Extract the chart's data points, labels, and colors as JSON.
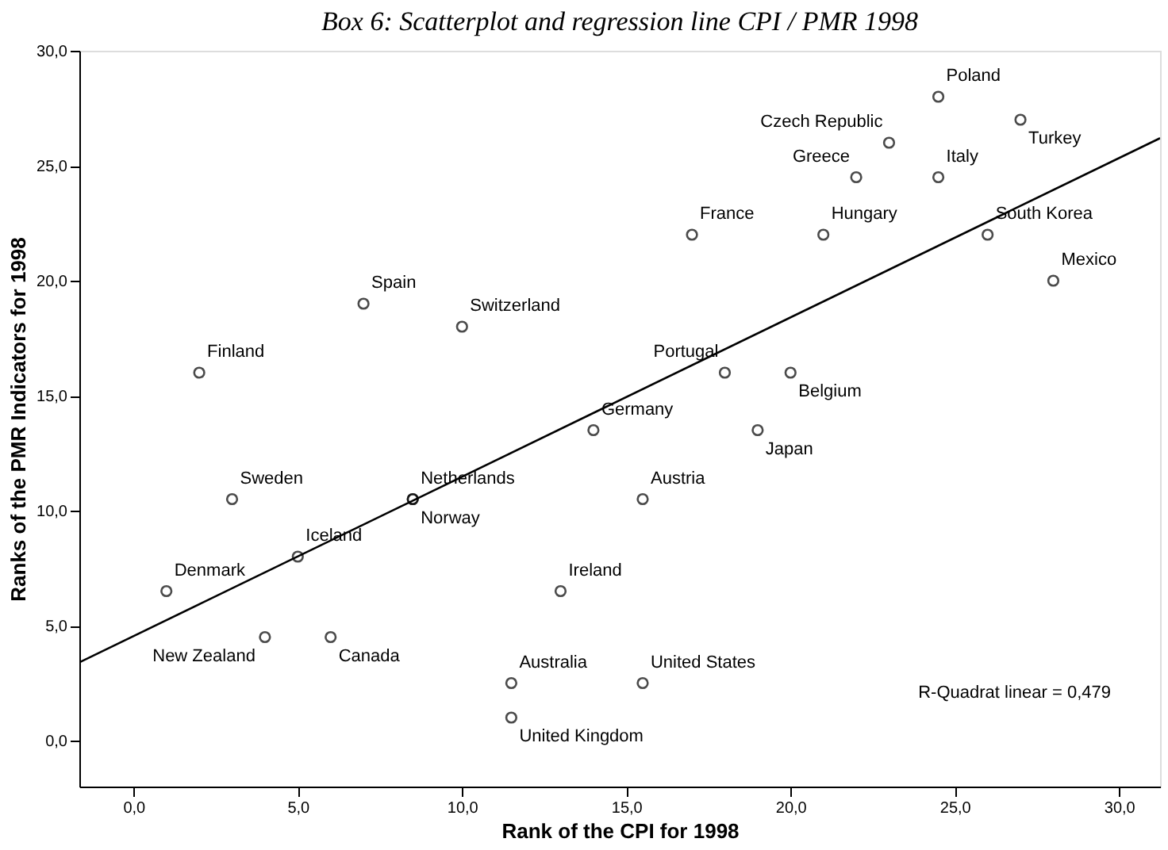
{
  "chart_data": {
    "type": "scatter",
    "title": "Box 6: Scatterplot and regression line CPI / PMR 1998",
    "xlabel": "Rank of the CPI for 1998",
    "ylabel": "Ranks of the PMR Indicators for 1998",
    "xlim": [
      -1.65,
      31.25
    ],
    "ylim": [
      -2,
      30
    ],
    "xticks": [
      {
        "value": 0,
        "label": "0,0"
      },
      {
        "value": 5,
        "label": "5,0"
      },
      {
        "value": 10,
        "label": "10,0"
      },
      {
        "value": 15,
        "label": "15,0"
      },
      {
        "value": 20,
        "label": "20,0"
      },
      {
        "value": 25,
        "label": "25,0"
      },
      {
        "value": 30,
        "label": "30,0"
      }
    ],
    "yticks": [
      {
        "value": 0,
        "label": "0,0"
      },
      {
        "value": 5,
        "label": "5,0"
      },
      {
        "value": 10,
        "label": "10,0"
      },
      {
        "value": 15,
        "label": "15,0"
      },
      {
        "value": 20,
        "label": "20,0"
      },
      {
        "value": 25,
        "label": "25,0"
      },
      {
        "value": 30,
        "label": "30,0"
      }
    ],
    "grid": false,
    "series": [
      {
        "marker": "circle",
        "color": "#000000",
        "x": [
          24.5,
          27,
          23,
          22,
          24.5,
          17,
          21,
          26,
          28,
          7,
          10,
          2,
          18,
          20,
          14,
          19,
          3,
          8.5,
          8.5,
          15.5,
          5,
          13,
          1,
          4,
          6,
          11.5,
          15.5,
          11.5
        ],
        "values": [
          28,
          27,
          26,
          24.5,
          24.5,
          22,
          22,
          22,
          20,
          19,
          18,
          16,
          16,
          16,
          13.5,
          13.5,
          10.5,
          10.5,
          10.5,
          10.5,
          8,
          6.5,
          6.5,
          4.5,
          4.5,
          2.5,
          2.5,
          1
        ]
      },
      {
        "type": "line",
        "color": "#000000",
        "x": [
          -1.65,
          31.25
        ],
        "values": [
          3.4,
          26.2
        ]
      }
    ],
    "annotations": [
      {
        "text": "Poland",
        "x": 24.5,
        "y": 28
      },
      {
        "text": "Turkey",
        "x": 27,
        "y": 27
      },
      {
        "text": "Czech Republic",
        "x": 23,
        "y": 26
      },
      {
        "text": "Greece",
        "x": 22,
        "y": 24.5
      },
      {
        "text": "Italy",
        "x": 24.5,
        "y": 24.5
      },
      {
        "text": "France",
        "x": 17,
        "y": 22
      },
      {
        "text": "Hungary",
        "x": 21,
        "y": 22
      },
      {
        "text": "South Korea",
        "x": 26,
        "y": 22
      },
      {
        "text": "Mexico",
        "x": 28,
        "y": 20
      },
      {
        "text": "Spain",
        "x": 7,
        "y": 19
      },
      {
        "text": "Switzerland",
        "x": 10,
        "y": 18
      },
      {
        "text": "Finland",
        "x": 2,
        "y": 16
      },
      {
        "text": "Portugal",
        "x": 18,
        "y": 16
      },
      {
        "text": "Belgium",
        "x": 20,
        "y": 16
      },
      {
        "text": "Germany",
        "x": 14,
        "y": 13.5
      },
      {
        "text": "Japan",
        "x": 19,
        "y": 13.5
      },
      {
        "text": "Sweden",
        "x": 3,
        "y": 10.5
      },
      {
        "text": "Netherlands",
        "x": 8.5,
        "y": 10.5
      },
      {
        "text": "Norway",
        "x": 8.5,
        "y": 10.5
      },
      {
        "text": "Austria",
        "x": 15.5,
        "y": 10.5
      },
      {
        "text": "Iceland",
        "x": 5,
        "y": 8
      },
      {
        "text": "Ireland",
        "x": 13,
        "y": 6.5
      },
      {
        "text": "Denmark",
        "x": 1,
        "y": 6.5
      },
      {
        "text": "New Zealand",
        "x": 4,
        "y": 4.5
      },
      {
        "text": "Canada",
        "x": 6,
        "y": 4.5
      },
      {
        "text": "Australia",
        "x": 11.5,
        "y": 2.5
      },
      {
        "text": "United States",
        "x": 15.5,
        "y": 2.5
      },
      {
        "text": "United Kingdom",
        "x": 11.5,
        "y": 1
      },
      "R-Quadrat linear = 0,479"
    ]
  }
}
